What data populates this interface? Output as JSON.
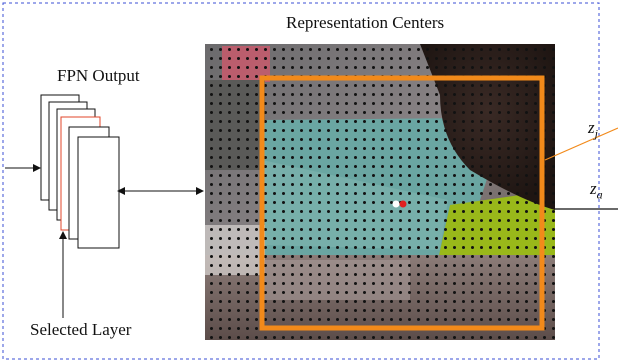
{
  "labels": {
    "title": "Representation Centers",
    "fpn_output": "FPN Output",
    "selected_layer": "Selected Layer",
    "z_j_base": "z",
    "z_j_sub": "j",
    "z_a_base": "z",
    "z_a_sub": "a"
  },
  "colors": {
    "dashed_border": "#3b4fd6",
    "highlight_box": "#f28a1a",
    "selected_layer_edge": "#e0442a",
    "grid_dot": "#111111",
    "center_white": "#ffffff",
    "center_red": "#e02020"
  },
  "layer_stack": {
    "count": 6,
    "selected_index": 3
  }
}
